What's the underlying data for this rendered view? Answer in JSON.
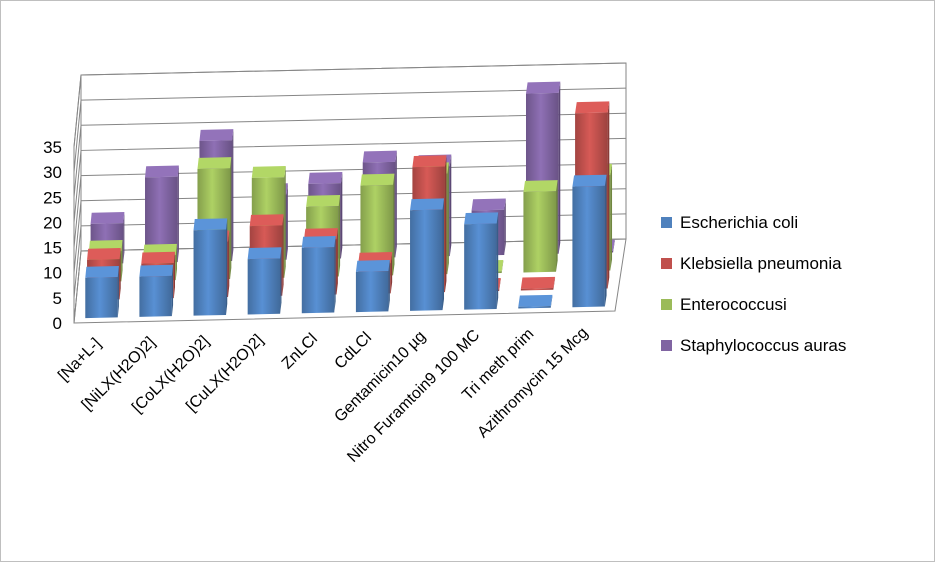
{
  "chart_data": {
    "type": "bar",
    "style": "3d-clustered",
    "categories": [
      "[Na+L-]",
      "[NiLX(H2O)2]",
      "[CoLX(H2O)2]",
      "[CuLX(H2O)2]",
      "ZnLCl",
      "CdLCl",
      "Gentamicin10 µg",
      "Nitro Furamtoin9  100 MC",
      "Tri meth prim",
      "Azithromycin 15 Mcg"
    ],
    "series": [
      {
        "name": "Escherichia coli",
        "color": "#4f81bd",
        "values": [
          8,
          8,
          17,
          11,
          13,
          8,
          20,
          17,
          0,
          24
        ]
      },
      {
        "name": "Klebsiella pneumonia",
        "color": "#c0504d",
        "values": [
          8,
          7,
          11,
          14,
          11,
          6,
          25,
          0,
          0,
          35
        ]
      },
      {
        "name": "Enterococcusi",
        "color": "#9bbb59",
        "values": [
          6,
          5,
          22,
          20,
          14,
          18,
          20,
          0,
          16,
          19
        ]
      },
      {
        "name": "Staphylococcus auras",
        "color": "#8064a2",
        "values": [
          8,
          17,
          24,
          13,
          15,
          19,
          18,
          9,
          32,
          0
        ]
      }
    ],
    "ylim": [
      0,
      35
    ],
    "yticks": [
      0,
      5,
      10,
      15,
      20,
      25,
      30,
      35
    ],
    "grid": true,
    "legend_position": "right"
  }
}
